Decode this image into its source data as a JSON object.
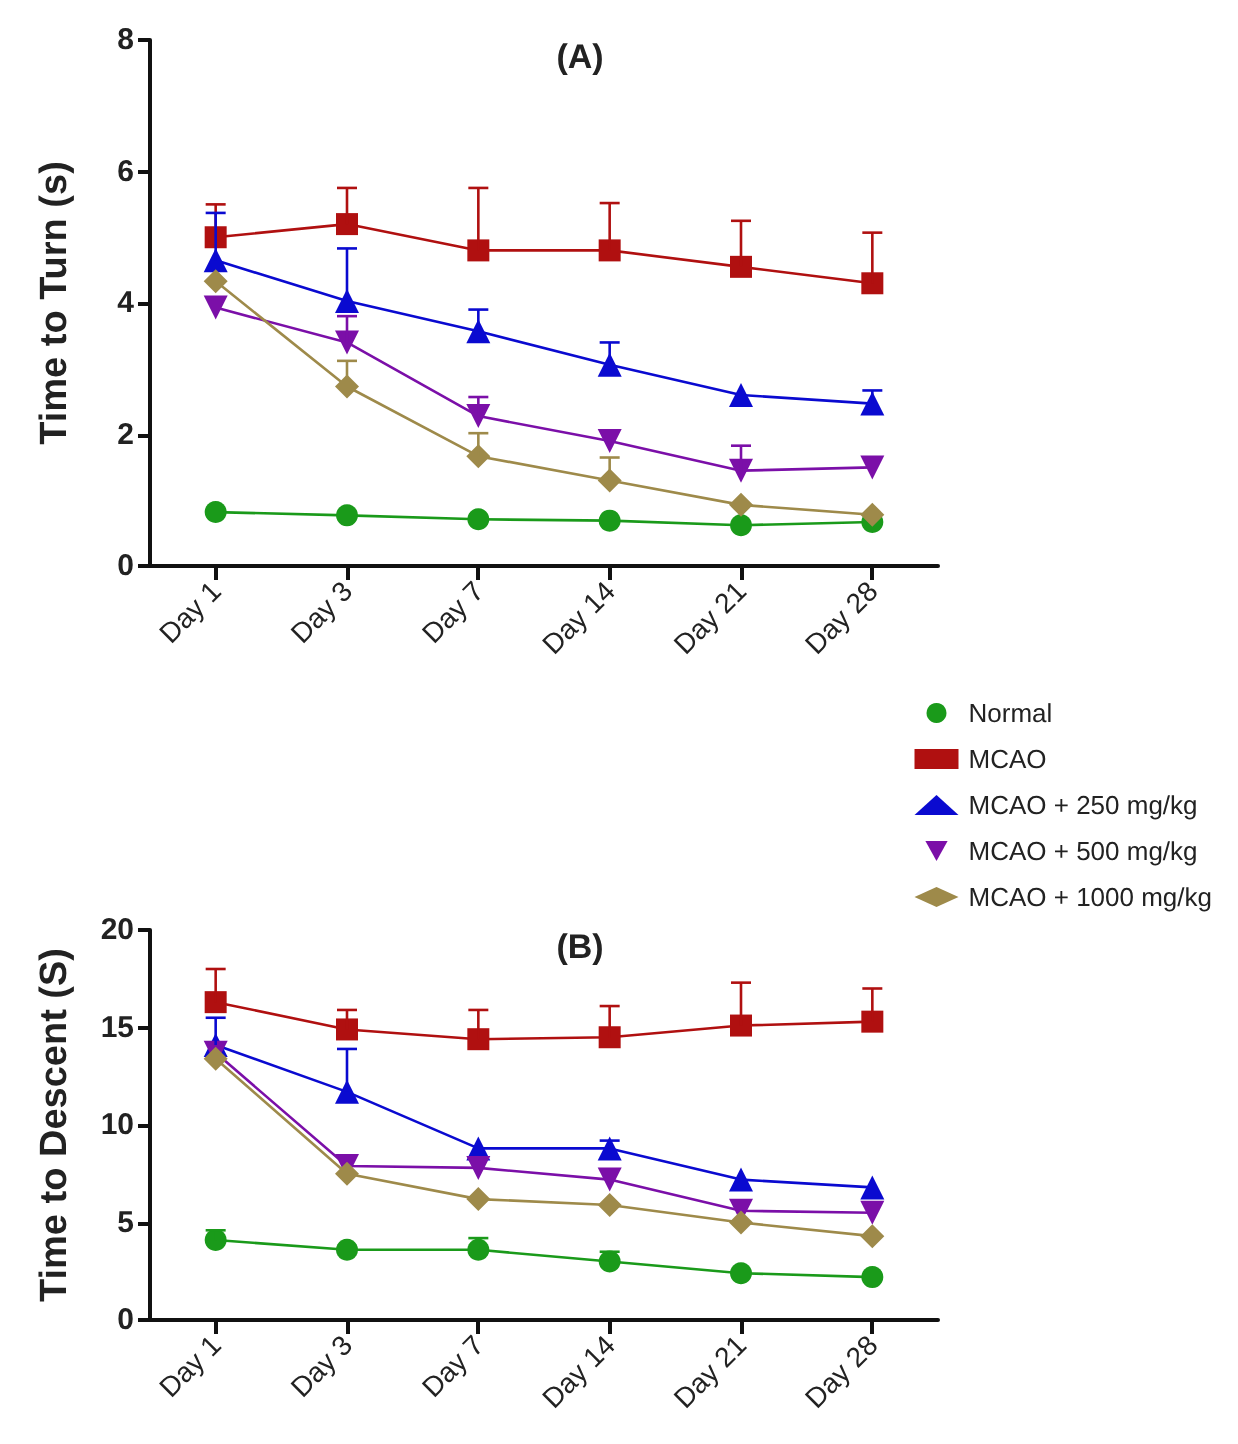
{
  "chart_data": [
    {
      "type": "line",
      "title": "(A)",
      "ylabel": "Time to Turn (s)",
      "categories": [
        "Day 1",
        "Day 3",
        "Day 7",
        "Day 14",
        "Day 21",
        "Day 28"
      ],
      "ylim": [
        0,
        8
      ],
      "yticks": [
        0,
        2,
        4,
        6,
        8
      ],
      "grid": false,
      "legend": false,
      "line_style": "solid",
      "series": [
        {
          "color": "#1a9a1a",
          "marker": "circle",
          "values": [
            0.82,
            0.77,
            0.71,
            0.69,
            0.62,
            0.67
          ]
        },
        {
          "color": "#b01010",
          "marker": "square",
          "values": [
            5.0,
            5.2,
            4.8,
            4.8,
            4.55,
            4.3
          ],
          "errors": [
            [
              5.0,
              5.5
            ],
            [
              5.2,
              5.75
            ],
            [
              4.8,
              5.75
            ],
            [
              4.8,
              5.52
            ],
            [
              4.55,
              5.25
            ],
            [
              4.3,
              5.07
            ]
          ]
        },
        {
          "color": "#0a0ad0",
          "marker": "triangle",
          "values": [
            4.65,
            4.03,
            3.57,
            3.06,
            2.6,
            2.47
          ],
          "errors": [
            [
              4.65,
              5.37
            ],
            [
              4.03,
              4.83
            ],
            [
              3.57,
              3.9
            ],
            [
              3.06,
              3.4
            ],
            null,
            [
              2.47,
              2.67
            ]
          ]
        },
        {
          "color": "#7b0fa8",
          "marker": "triangle-down",
          "values": [
            3.93,
            3.4,
            2.28,
            1.9,
            1.45,
            1.5
          ],
          "errors": [
            null,
            [
              3.4,
              3.8
            ],
            [
              2.28,
              2.57
            ],
            null,
            [
              1.45,
              1.83
            ],
            null
          ]
        },
        {
          "color": "#9e8a4a",
          "marker": "diamond",
          "values": [
            4.33,
            2.73,
            1.67,
            1.3,
            0.93,
            0.78
          ],
          "errors": [
            null,
            [
              2.73,
              3.12
            ],
            [
              1.67,
              2.02
            ],
            [
              1.3,
              1.65
            ],
            null,
            null
          ]
        }
      ]
    },
    {
      "type": "line",
      "title": "(B)",
      "ylabel": "Time to Descent (S)",
      "categories": [
        "Day 1",
        "Day 3",
        "Day 7",
        "Day 14",
        "Day 21",
        "Day 28"
      ],
      "ylim": [
        0,
        20
      ],
      "yticks": [
        0,
        5,
        10,
        15,
        20
      ],
      "grid": false,
      "legend": "top right",
      "line_style": "solid",
      "series": [
        {
          "name": "Normal",
          "color": "#1a9a1a",
          "marker": "circle",
          "values": [
            4.1,
            3.6,
            3.6,
            3.0,
            2.4,
            2.2
          ],
          "errors": [
            [
              4.1,
              4.6
            ],
            null,
            [
              3.6,
              4.2
            ],
            [
              3.0,
              3.5
            ],
            null,
            null
          ]
        },
        {
          "name": "MCAO",
          "color": "#b01010",
          "marker": "square",
          "values": [
            16.3,
            14.9,
            14.4,
            14.5,
            15.1,
            15.3
          ],
          "errors": [
            [
              16.3,
              18.0
            ],
            [
              14.9,
              15.9
            ],
            [
              14.4,
              15.9
            ],
            [
              14.5,
              16.1
            ],
            [
              15.1,
              17.3
            ],
            [
              15.3,
              17.0
            ]
          ]
        },
        {
          "name": "MCAO + 250 mg/kg",
          "color": "#0a0ad0",
          "marker": "triangle",
          "values": [
            14.1,
            11.7,
            8.8,
            8.8,
            7.2,
            6.8
          ],
          "errors": [
            [
              14.1,
              15.5
            ],
            [
              11.7,
              13.9
            ],
            null,
            [
              8.8,
              9.2
            ],
            null,
            null
          ]
        },
        {
          "name": "MCAO + 500 mg/kg",
          "color": "#7b0fa8",
          "marker": "triangle-down",
          "values": [
            13.7,
            7.9,
            7.8,
            7.2,
            5.6,
            5.5
          ]
        },
        {
          "name": "MCAO + 1000 mg/kg",
          "color": "#9e8a4a",
          "marker": "diamond",
          "values": [
            13.4,
            7.5,
            6.2,
            5.9,
            5.0,
            4.3
          ]
        }
      ]
    }
  ]
}
